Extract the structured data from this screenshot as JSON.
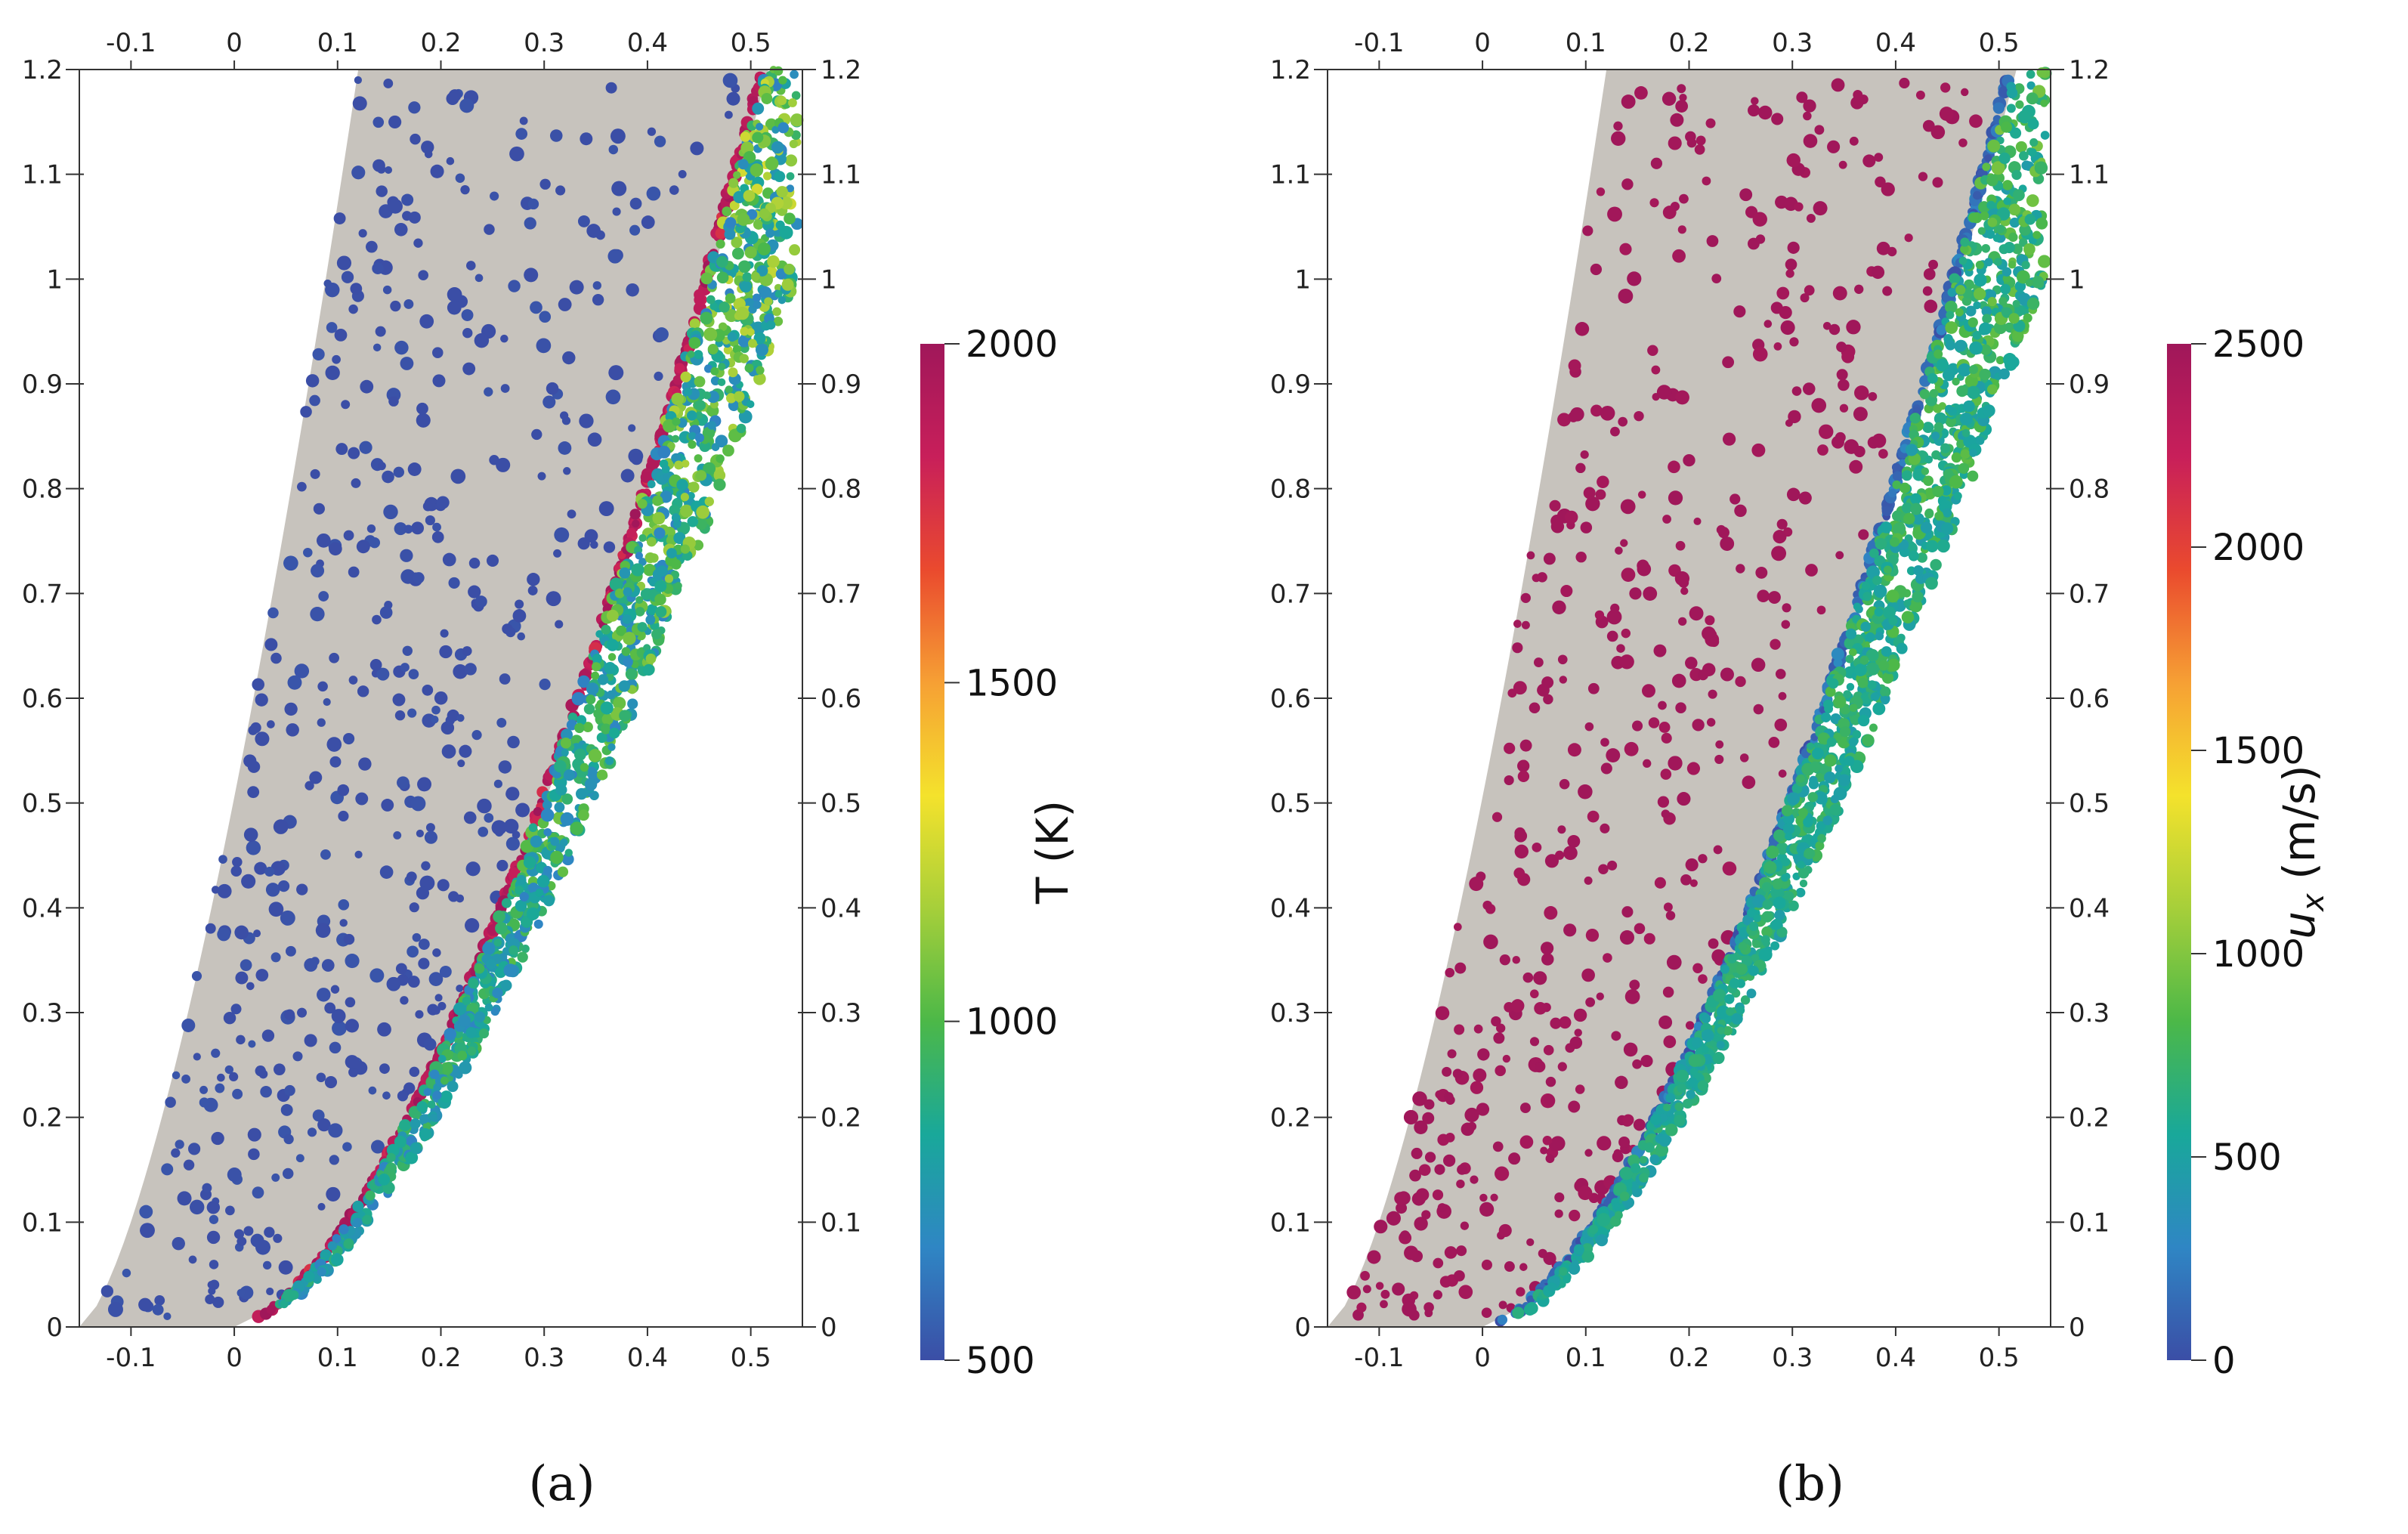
{
  "chart_data": [
    {
      "type": "scatter",
      "panel_label": "(a)",
      "xlim": [
        -0.15,
        0.55
      ],
      "ylim": [
        0,
        1.2
      ],
      "xticks": [
        -0.1,
        0,
        0.1,
        0.2,
        0.3,
        0.4,
        0.5
      ],
      "yticks": [
        0,
        0.1,
        0.2,
        0.3,
        0.4,
        0.5,
        0.6,
        0.7,
        0.8,
        0.9,
        1,
        1.1,
        1.2
      ],
      "xtick_labels": [
        "-0.1",
        "0",
        "0.1",
        "0.2",
        "0.3",
        "0.4",
        "0.5"
      ],
      "ytick_labels": [
        "0",
        "0.1",
        "0.2",
        "0.3",
        "0.4",
        "0.5",
        "0.6",
        "0.7",
        "0.8",
        "0.9",
        "1",
        "1.1",
        "1.2"
      ],
      "colorbar": {
        "title": "T (K)",
        "min": 500,
        "max": 2000,
        "ticks": [
          500,
          1000,
          1500,
          2000
        ],
        "tick_labels": [
          "500",
          "1000",
          "1500",
          "2000"
        ]
      },
      "regions": {
        "free_stream_value": 500,
        "shock_front_value": 1900,
        "shock_layer_value_range": [
          650,
          1300
        ]
      }
    },
    {
      "type": "scatter",
      "panel_label": "(b)",
      "xlim": [
        -0.15,
        0.55
      ],
      "ylim": [
        0,
        1.2
      ],
      "xticks": [
        -0.1,
        0,
        0.1,
        0.2,
        0.3,
        0.4,
        0.5
      ],
      "yticks": [
        0,
        0.1,
        0.2,
        0.3,
        0.4,
        0.5,
        0.6,
        0.7,
        0.8,
        0.9,
        1,
        1.1,
        1.2
      ],
      "xtick_labels": [
        "-0.1",
        "0",
        "0.1",
        "0.2",
        "0.3",
        "0.4",
        "0.5"
      ],
      "ytick_labels": [
        "0",
        "0.1",
        "0.2",
        "0.3",
        "0.4",
        "0.5",
        "0.6",
        "0.7",
        "0.8",
        "0.9",
        "1",
        "1.1",
        "1.2"
      ],
      "colorbar": {
        "title": "u",
        "title_subscript": "x",
        "title_unit": " (m/s)",
        "min": 0,
        "max": 2500,
        "ticks": [
          0,
          500,
          1000,
          1500,
          2000,
          2500
        ],
        "tick_labels": [
          "0",
          "500",
          "1000",
          "1500",
          "2000",
          "2500"
        ]
      },
      "regions": {
        "free_stream_value": 2500,
        "shock_front_value": 150,
        "shock_layer_value_range": [
          450,
          1000
        ]
      }
    }
  ],
  "colormap": [
    "#3b4ea6",
    "#2f86c4",
    "#19a89a",
    "#4cb848",
    "#a6cf3a",
    "#f4e22c",
    "#f6a034",
    "#ea4a2e",
    "#c81f5a",
    "#a0175a"
  ],
  "domain_color": "#c7c3bd"
}
